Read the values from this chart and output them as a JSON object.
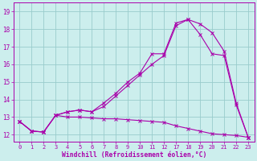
{
  "xlabel": "Windchill (Refroidissement éolien,°C)",
  "bg_color": "#cceeed",
  "line_color": "#aa00aa",
  "grid_color": "#99cccc",
  "yticks": [
    12,
    13,
    14,
    15,
    16,
    17,
    18,
    19
  ],
  "ylim": [
    11.6,
    19.5
  ],
  "line1_x": [
    0,
    1,
    2,
    3,
    4,
    5,
    6,
    7,
    8,
    9,
    10,
    11,
    12,
    13,
    14,
    15,
    16,
    17,
    18,
    19
  ],
  "line1_y": [
    12.75,
    12.2,
    12.15,
    13.1,
    13.0,
    13.0,
    12.95,
    12.9,
    12.9,
    12.85,
    12.8,
    12.75,
    12.7,
    12.5,
    12.35,
    12.2,
    12.05,
    12.0,
    11.95,
    11.85
  ],
  "line2_x": [
    0,
    1,
    2,
    3,
    4,
    5,
    6,
    7,
    8,
    9,
    10,
    11,
    12,
    13,
    14,
    15,
    16,
    17,
    18,
    19
  ],
  "line2_y": [
    12.75,
    12.2,
    12.15,
    13.1,
    13.3,
    13.4,
    13.3,
    13.8,
    14.35,
    15.0,
    15.5,
    16.6,
    16.6,
    18.35,
    18.55,
    18.3,
    17.8,
    16.75,
    13.8,
    11.85
  ],
  "line3_x": [
    0,
    1,
    2,
    3,
    4,
    5,
    6,
    7,
    8,
    9,
    10,
    11,
    12,
    13,
    14,
    15,
    16,
    17,
    18,
    19
  ],
  "line3_y": [
    12.75,
    12.2,
    12.15,
    13.1,
    13.3,
    13.4,
    13.3,
    13.6,
    14.2,
    14.8,
    15.4,
    16.0,
    16.5,
    18.2,
    18.55,
    17.7,
    16.6,
    16.5,
    13.7,
    11.85
  ],
  "xtick_labels": [
    "0",
    "1",
    "2",
    "3",
    "4",
    "5",
    "6",
    "7",
    "8",
    "9",
    "10",
    "11",
    "12",
    "17",
    "18",
    "19",
    "20",
    "21",
    "22",
    "23"
  ]
}
